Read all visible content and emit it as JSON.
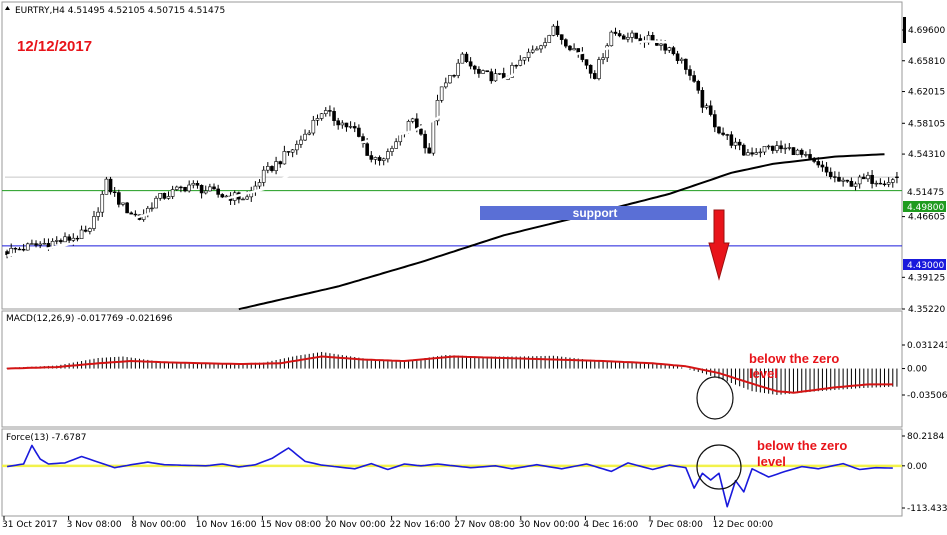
{
  "header": {
    "symbol_info": "EURTRY,H4  4.51495 4.52105 4.50715 4.51475",
    "date_label": "12/12/2017"
  },
  "main_axis": {
    "ticks": [
      "4.69600",
      "4.65810",
      "4.62015",
      "4.58105",
      "4.54310",
      "4.46605",
      "4.39125",
      "4.35220"
    ],
    "ylim": [
      4.3522,
      4.7305
    ]
  },
  "badges": {
    "current": {
      "text": "4.51475",
      "bg": "#ffffff",
      "fg": "#000000"
    },
    "support": {
      "text": "4.49800",
      "bg": "#1f9b1f",
      "fg": "#ffffff"
    },
    "target": {
      "text": "4.43000",
      "bg": "#1a1adc",
      "fg": "#ffffff"
    }
  },
  "support_box": {
    "label": "support",
    "color": "#5a6fd6"
  },
  "macd": {
    "header": "MACD(12,26,9) -0.017769 -0.021696",
    "ticks": [
      "0.031241",
      "0.00",
      "-0.03506"
    ],
    "note_line1": "below the zero",
    "note_line2": "level"
  },
  "force": {
    "header": "Force(13) -7.6787",
    "ticks": [
      "80.2184",
      "0.00",
      "-113.4331"
    ],
    "note_line1": "below the zero",
    "note_line2": "level"
  },
  "x_axis": {
    "labels": [
      "31 Oct 2017",
      "3 Nov 08:00",
      "8 Nov 00:00",
      "10 Nov 16:00",
      "15 Nov 08:00",
      "20 Nov 00:00",
      "22 Nov 16:00",
      "27 Nov 08:00",
      "30 Nov 00:00",
      "4 Dec 16:00",
      "7 Dec 08:00",
      "12 Dec 00:00"
    ]
  },
  "colors": {
    "bull": "#ffffff",
    "bear": "#000000",
    "fast_ma": "#ffffff",
    "slow_ma": "#000000",
    "support_line": "#1f9b1f",
    "target_line": "#1a1adc",
    "signal": "#d41414",
    "force": "#1a1adc",
    "zero": "#f2f24a",
    "arrow": "#e8141a"
  },
  "chart_data": [
    {
      "type": "candlestick",
      "symbol": "EURTRY",
      "timeframe": "H4",
      "ylim": [
        4.3522,
        4.7305
      ],
      "anchors": [
        [
          0,
          4.423
        ],
        [
          8,
          4.432
        ],
        [
          14,
          4.437
        ],
        [
          20,
          4.447
        ],
        [
          24,
          4.507
        ],
        [
          28,
          4.478
        ],
        [
          32,
          4.464
        ],
        [
          36,
          4.487
        ],
        [
          44,
          4.505
        ],
        [
          52,
          4.492
        ],
        [
          58,
          4.489
        ],
        [
          62,
          4.518
        ],
        [
          70,
          4.554
        ],
        [
          76,
          4.596
        ],
        [
          84,
          4.572
        ],
        [
          88,
          4.537
        ],
        [
          92,
          4.541
        ],
        [
          98,
          4.587
        ],
        [
          102,
          4.546
        ],
        [
          104,
          4.613
        ],
        [
          110,
          4.661
        ],
        [
          114,
          4.641
        ],
        [
          120,
          4.637
        ],
        [
          124,
          4.656
        ],
        [
          128,
          4.675
        ],
        [
          132,
          4.696
        ],
        [
          138,
          4.668
        ],
        [
          142,
          4.641
        ],
        [
          146,
          4.693
        ],
        [
          152,
          4.686
        ],
        [
          156,
          4.683
        ],
        [
          160,
          4.674
        ],
        [
          164,
          4.651
        ],
        [
          168,
          4.605
        ],
        [
          172,
          4.573
        ],
        [
          178,
          4.544
        ],
        [
          184,
          4.551
        ],
        [
          190,
          4.548
        ],
        [
          196,
          4.527
        ],
        [
          202,
          4.506
        ],
        [
          208,
          4.512
        ],
        [
          214,
          4.511
        ]
      ],
      "last": {
        "open": 4.51495,
        "high": 4.52105,
        "low": 4.50715,
        "close": 4.51475
      },
      "fast_ma_anchors": [
        [
          0,
          4.418
        ],
        [
          10,
          4.427
        ],
        [
          20,
          4.437
        ],
        [
          28,
          4.46
        ],
        [
          40,
          4.478
        ],
        [
          52,
          4.487
        ],
        [
          62,
          4.5
        ],
        [
          72,
          4.528
        ],
        [
          80,
          4.55
        ],
        [
          90,
          4.563
        ],
        [
          98,
          4.571
        ],
        [
          106,
          4.593
        ],
        [
          114,
          4.621
        ],
        [
          122,
          4.64
        ],
        [
          128,
          4.654
        ],
        [
          138,
          4.667
        ],
        [
          146,
          4.674
        ],
        [
          154,
          4.682
        ],
        [
          160,
          4.681
        ],
        [
          166,
          4.664
        ],
        [
          172,
          4.635
        ],
        [
          178,
          4.604
        ],
        [
          184,
          4.581
        ],
        [
          190,
          4.563
        ],
        [
          198,
          4.545
        ],
        [
          206,
          4.532
        ],
        [
          212,
          4.52
        ]
      ],
      "slow_ma_anchors": [
        [
          56,
          4.352
        ],
        [
          80,
          4.38
        ],
        [
          100,
          4.41
        ],
        [
          120,
          4.443
        ],
        [
          140,
          4.468
        ],
        [
          160,
          4.494
        ],
        [
          175,
          4.52
        ],
        [
          185,
          4.531
        ],
        [
          200,
          4.54
        ],
        [
          212,
          4.543
        ]
      ],
      "support_level": 4.498,
      "target_level": 4.43
    },
    {
      "type": "bar",
      "name": "MACD(12,26,9)",
      "ylim": [
        -0.03506,
        0.031241
      ],
      "histogram_anchors": [
        [
          0,
          0.001
        ],
        [
          12,
          0.004
        ],
        [
          22,
          0.014
        ],
        [
          28,
          0.016
        ],
        [
          36,
          0.01
        ],
        [
          50,
          0.006
        ],
        [
          62,
          0.008
        ],
        [
          70,
          0.017
        ],
        [
          76,
          0.022
        ],
        [
          88,
          0.012
        ],
        [
          96,
          0.01
        ],
        [
          106,
          0.018
        ],
        [
          114,
          0.016
        ],
        [
          124,
          0.016
        ],
        [
          132,
          0.017
        ],
        [
          140,
          0.012
        ],
        [
          150,
          0.009
        ],
        [
          156,
          0.007
        ],
        [
          162,
          0.003
        ],
        [
          168,
          -0.006
        ],
        [
          174,
          -0.017
        ],
        [
          180,
          -0.03
        ],
        [
          186,
          -0.035
        ],
        [
          196,
          -0.03
        ],
        [
          206,
          -0.026
        ],
        [
          214,
          -0.024
        ]
      ],
      "signal_anchors": [
        [
          0,
          0.0
        ],
        [
          12,
          0.002
        ],
        [
          22,
          0.007
        ],
        [
          30,
          0.01
        ],
        [
          40,
          0.008
        ],
        [
          56,
          0.006
        ],
        [
          66,
          0.007
        ],
        [
          76,
          0.016
        ],
        [
          86,
          0.012
        ],
        [
          96,
          0.01
        ],
        [
          108,
          0.016
        ],
        [
          120,
          0.014
        ],
        [
          132,
          0.012
        ],
        [
          144,
          0.01
        ],
        [
          156,
          0.007
        ],
        [
          164,
          0.003
        ],
        [
          172,
          -0.006
        ],
        [
          180,
          -0.02
        ],
        [
          186,
          -0.03
        ],
        [
          190,
          -0.032
        ],
        [
          200,
          -0.025
        ],
        [
          208,
          -0.021
        ],
        [
          214,
          -0.021
        ]
      ]
    },
    {
      "type": "line",
      "name": "Force(13)",
      "ylim": [
        -113.4331,
        80.2184
      ],
      "anchors": [
        [
          0,
          -2
        ],
        [
          4,
          5
        ],
        [
          6,
          55
        ],
        [
          8,
          18
        ],
        [
          10,
          5
        ],
        [
          14,
          8
        ],
        [
          18,
          25
        ],
        [
          22,
          10
        ],
        [
          26,
          -5
        ],
        [
          30,
          3
        ],
        [
          34,
          10
        ],
        [
          38,
          3
        ],
        [
          48,
          0
        ],
        [
          52,
          5
        ],
        [
          56,
          -3
        ],
        [
          60,
          3
        ],
        [
          64,
          20
        ],
        [
          68,
          48
        ],
        [
          72,
          12
        ],
        [
          76,
          2
        ],
        [
          80,
          -3
        ],
        [
          84,
          -8
        ],
        [
          88,
          6
        ],
        [
          92,
          -10
        ],
        [
          96,
          5
        ],
        [
          100,
          0
        ],
        [
          104,
          5
        ],
        [
          112,
          -5
        ],
        [
          118,
          0
        ],
        [
          122,
          -8
        ],
        [
          128,
          3
        ],
        [
          134,
          -8
        ],
        [
          140,
          5
        ],
        [
          146,
          -15
        ],
        [
          150,
          8
        ],
        [
          156,
          -10
        ],
        [
          160,
          2
        ],
        [
          164,
          -5
        ],
        [
          166,
          -60
        ],
        [
          168,
          -20
        ],
        [
          170,
          -38
        ],
        [
          172,
          -20
        ],
        [
          174,
          -110
        ],
        [
          176,
          -40
        ],
        [
          178,
          -70
        ],
        [
          180,
          -8
        ],
        [
          184,
          -30
        ],
        [
          188,
          -15
        ],
        [
          192,
          -2
        ],
        [
          196,
          -8
        ],
        [
          202,
          6
        ],
        [
          206,
          -10
        ],
        [
          210,
          -5
        ],
        [
          214,
          -6
        ]
      ]
    }
  ]
}
